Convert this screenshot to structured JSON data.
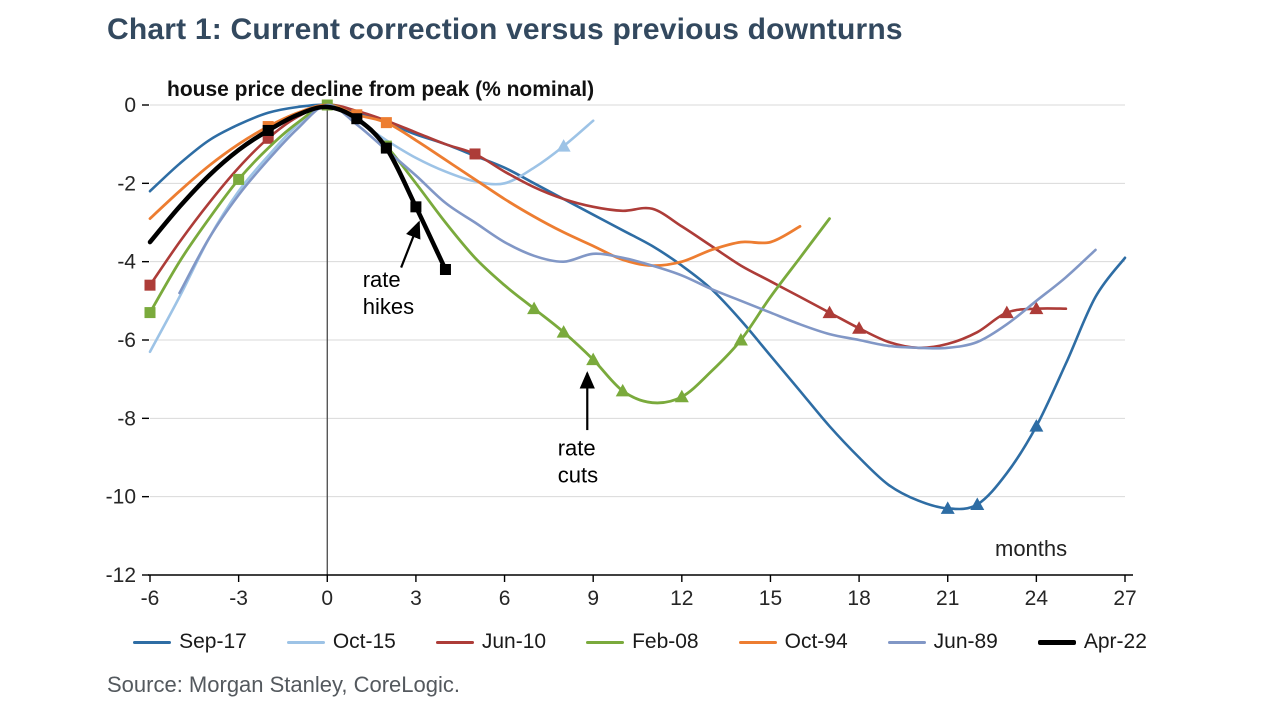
{
  "source": "Source: Morgan Stanley, CoreLogic.",
  "style": {
    "title_color": "#33495f",
    "grid_color": "#d9d9d9",
    "axis_color": "#000000",
    "zero_line_color": "#4a4a4a",
    "tick_text_color": "#262626",
    "annotation_color": "#000000",
    "subtitle_color": "#111111",
    "months_color": "#222222",
    "legend_text_color": "#1a1a1a",
    "source_color": "#54595e"
  },
  "chart_data": {
    "type": "line",
    "title": "Chart 1: Current correction versus previous downturns",
    "ylabel": "house price decline from peak (% nominal)",
    "xlabel": "months",
    "xlim": [
      -6,
      27
    ],
    "ylim": [
      -12,
      0
    ],
    "xticks": [
      -6,
      -3,
      0,
      3,
      6,
      9,
      12,
      15,
      18,
      21,
      24,
      27
    ],
    "yticks": [
      0,
      -2,
      -4,
      -6,
      -8,
      -10,
      -12
    ],
    "grid": "horizontal",
    "zero_vline": true,
    "legend_position": "bottom",
    "series": [
      {
        "name": "Sep-17",
        "color": "#2e6da4",
        "width": 2.6,
        "x": [
          -6,
          -5,
          -4,
          -3,
          -2,
          -1,
          0,
          1,
          2,
          3,
          4,
          5,
          6,
          7,
          8,
          9,
          10,
          11,
          12,
          13,
          14,
          15,
          16,
          17,
          18,
          19,
          20,
          21,
          22,
          23,
          24,
          25,
          26,
          27
        ],
        "y": [
          -2.2,
          -1.5,
          -0.9,
          -0.5,
          -0.2,
          -0.05,
          0,
          -0.2,
          -0.45,
          -0.75,
          -1.0,
          -1.3,
          -1.6,
          -2.0,
          -2.4,
          -2.8,
          -3.2,
          -3.6,
          -4.1,
          -4.7,
          -5.5,
          -6.4,
          -7.3,
          -8.2,
          -9.0,
          -9.7,
          -10.1,
          -10.3,
          -10.2,
          -9.4,
          -8.2,
          -6.6,
          -4.9,
          -3.9
        ],
        "markers": [
          {
            "x": 21,
            "y": -10.3,
            "shape": "triangle"
          },
          {
            "x": 22,
            "y": -10.2,
            "shape": "triangle"
          },
          {
            "x": 24,
            "y": -8.2,
            "shape": "triangle"
          }
        ]
      },
      {
        "name": "Oct-15",
        "color": "#9dc3e6",
        "width": 2.6,
        "x": [
          -6,
          -5,
          -4,
          -3,
          -2,
          -1,
          0,
          1,
          2,
          3,
          4,
          5,
          6,
          7,
          8,
          9
        ],
        "y": [
          -6.3,
          -4.9,
          -3.4,
          -2.2,
          -1.3,
          -0.5,
          0,
          -0.4,
          -0.9,
          -1.35,
          -1.7,
          -1.95,
          -2.0,
          -1.6,
          -1.05,
          -0.4
        ],
        "markers": [
          {
            "x": 8,
            "y": -1.05,
            "shape": "triangle"
          }
        ]
      },
      {
        "name": "Jun-10",
        "color": "#ad3c38",
        "width": 2.6,
        "x": [
          -6,
          -5,
          -4,
          -3,
          -2,
          -1,
          0,
          1,
          2,
          3,
          4,
          5,
          6,
          7,
          8,
          9,
          10,
          11,
          12,
          13,
          14,
          15,
          16,
          17,
          18,
          19,
          20,
          21,
          22,
          23,
          24,
          25
        ],
        "y": [
          -4.6,
          -3.5,
          -2.5,
          -1.6,
          -0.85,
          -0.3,
          0,
          -0.15,
          -0.4,
          -0.7,
          -1.0,
          -1.25,
          -1.7,
          -2.1,
          -2.4,
          -2.6,
          -2.7,
          -2.65,
          -3.1,
          -3.6,
          -4.1,
          -4.5,
          -4.9,
          -5.3,
          -5.7,
          -6.05,
          -6.2,
          -6.1,
          -5.8,
          -5.3,
          -5.2,
          -5.2
        ],
        "markers": [
          {
            "x": -6,
            "y": -4.6,
            "shape": "square"
          },
          {
            "x": -2,
            "y": -0.85,
            "shape": "square"
          },
          {
            "x": 5,
            "y": -1.25,
            "shape": "square"
          },
          {
            "x": 17,
            "y": -5.3,
            "shape": "triangle"
          },
          {
            "x": 18,
            "y": -5.7,
            "shape": "triangle"
          },
          {
            "x": 23,
            "y": -5.3,
            "shape": "triangle"
          },
          {
            "x": 24,
            "y": -5.2,
            "shape": "triangle"
          }
        ]
      },
      {
        "name": "Feb-08",
        "color": "#7aaa3c",
        "width": 2.8,
        "x": [
          -6,
          -5,
          -4,
          -3,
          -2,
          -1,
          0,
          1,
          2,
          3,
          4,
          5,
          6,
          7,
          8,
          9,
          10,
          11,
          12,
          13,
          14,
          15,
          16,
          17
        ],
        "y": [
          -5.3,
          -4.0,
          -2.9,
          -1.9,
          -1.1,
          -0.45,
          0,
          -0.35,
          -1.05,
          -2.0,
          -3.0,
          -3.9,
          -4.6,
          -5.2,
          -5.8,
          -6.5,
          -7.3,
          -7.6,
          -7.45,
          -6.8,
          -6.0,
          -4.9,
          -3.9,
          -2.9
        ],
        "markers": [
          {
            "x": -6,
            "y": -5.3,
            "shape": "square"
          },
          {
            "x": -3,
            "y": -1.9,
            "shape": "square"
          },
          {
            "x": 0,
            "y": 0,
            "shape": "square"
          },
          {
            "x": 2,
            "y": -1.05,
            "shape": "square"
          },
          {
            "x": 7,
            "y": -5.2,
            "shape": "triangle"
          },
          {
            "x": 8,
            "y": -5.8,
            "shape": "triangle"
          },
          {
            "x": 9,
            "y": -6.5,
            "shape": "triangle"
          },
          {
            "x": 10,
            "y": -7.3,
            "shape": "triangle"
          },
          {
            "x": 12,
            "y": -7.45,
            "shape": "triangle"
          },
          {
            "x": 14,
            "y": -6.0,
            "shape": "triangle"
          }
        ]
      },
      {
        "name": "Oct-94",
        "color": "#ed7d31",
        "width": 2.8,
        "x": [
          -6,
          -5,
          -4,
          -3,
          -2,
          -1,
          0,
          1,
          2,
          3,
          4,
          5,
          6,
          7,
          8,
          9,
          10,
          11,
          12,
          13,
          14,
          15,
          16
        ],
        "y": [
          -2.9,
          -2.2,
          -1.55,
          -1.0,
          -0.55,
          -0.2,
          0,
          -0.25,
          -0.45,
          -0.9,
          -1.4,
          -1.9,
          -2.4,
          -2.85,
          -3.25,
          -3.6,
          -3.95,
          -4.1,
          -4.0,
          -3.7,
          -3.5,
          -3.5,
          -3.1
        ],
        "markers": [
          {
            "x": -2,
            "y": -0.55,
            "shape": "square"
          },
          {
            "x": 1,
            "y": -0.25,
            "shape": "square"
          },
          {
            "x": 2,
            "y": -0.45,
            "shape": "square"
          }
        ]
      },
      {
        "name": "Jun-89",
        "color": "#8197c6",
        "width": 2.6,
        "x": [
          -5,
          -4,
          -3,
          -2,
          -1,
          0,
          1,
          2,
          3,
          4,
          5,
          6,
          7,
          8,
          9,
          10,
          11,
          12,
          13,
          14,
          15,
          16,
          17,
          18,
          19,
          20,
          21,
          22,
          23,
          24,
          25,
          26
        ],
        "y": [
          -4.8,
          -3.4,
          -2.3,
          -1.4,
          -0.6,
          0,
          -0.5,
          -1.15,
          -1.8,
          -2.5,
          -3.0,
          -3.5,
          -3.85,
          -4.0,
          -3.8,
          -3.9,
          -4.1,
          -4.35,
          -4.7,
          -5.0,
          -5.3,
          -5.6,
          -5.85,
          -6.0,
          -6.15,
          -6.2,
          -6.2,
          -6.05,
          -5.6,
          -5.0,
          -4.4,
          -3.7
        ],
        "markers": []
      },
      {
        "name": "Apr-22",
        "color": "#000000",
        "width": 4.5,
        "x": [
          -6,
          -5,
          -4,
          -3,
          -2,
          -1,
          0,
          1,
          2,
          3,
          4
        ],
        "y": [
          -3.5,
          -2.6,
          -1.8,
          -1.15,
          -0.65,
          -0.25,
          -0.05,
          -0.35,
          -1.1,
          -2.6,
          -4.2
        ],
        "markers": [
          {
            "x": -2,
            "y": -0.65,
            "shape": "square"
          },
          {
            "x": 1,
            "y": -0.35,
            "shape": "square"
          },
          {
            "x": 2,
            "y": -1.1,
            "shape": "square"
          },
          {
            "x": 3,
            "y": -2.6,
            "shape": "square"
          },
          {
            "x": 4,
            "y": -4.2,
            "shape": "square"
          }
        ]
      }
    ],
    "annotations": [
      {
        "text": "rate\nhikes",
        "x": 1.2,
        "y": -4.65,
        "arrow": {
          "x1": 2.5,
          "y1": -4.15,
          "x2": 3.1,
          "y2": -3.0
        }
      },
      {
        "text": "rate\ncuts",
        "x": 7.8,
        "y": -8.95,
        "arrow": {
          "x1": 8.8,
          "y1": -8.3,
          "x2": 8.8,
          "y2": -6.85
        }
      }
    ]
  }
}
